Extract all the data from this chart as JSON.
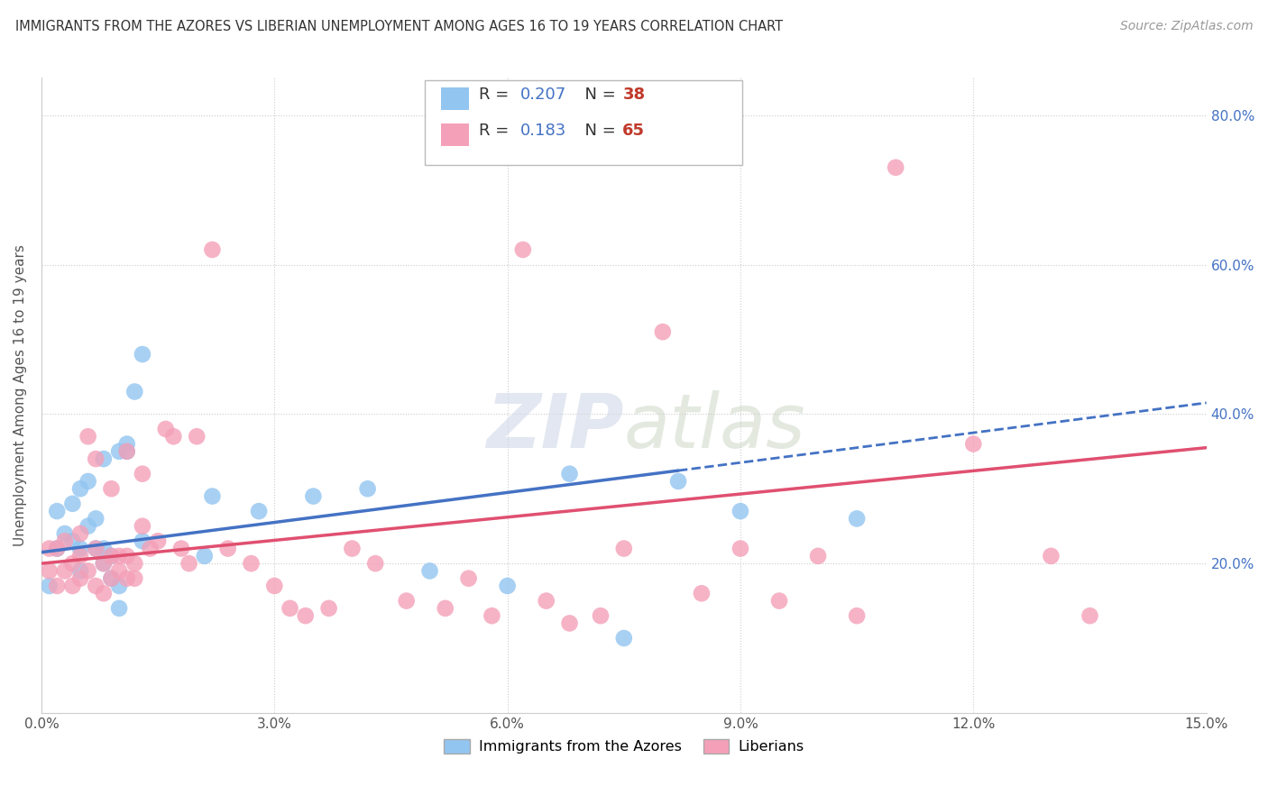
{
  "title": "IMMIGRANTS FROM THE AZORES VS LIBERIAN UNEMPLOYMENT AMONG AGES 16 TO 19 YEARS CORRELATION CHART",
  "source": "Source: ZipAtlas.com",
  "ylabel": "Unemployment Among Ages 16 to 19 years",
  "xlim": [
    0.0,
    0.15
  ],
  "ylim": [
    0.0,
    0.85
  ],
  "xticks": [
    0.0,
    0.03,
    0.06,
    0.09,
    0.12,
    0.15
  ],
  "yticks": [
    0.0,
    0.2,
    0.4,
    0.6,
    0.8
  ],
  "xtick_labels": [
    "0.0%",
    "3.0%",
    "6.0%",
    "9.0%",
    "12.0%",
    "15.0%"
  ],
  "right_ytick_labels": [
    "20.0%",
    "40.0%",
    "60.0%",
    "80.0%"
  ],
  "blue_R": "0.207",
  "blue_N": "38",
  "pink_R": "0.183",
  "pink_N": "65",
  "blue_color": "#92C5F0",
  "pink_color": "#F4A0B8",
  "blue_line_color": "#4472C4",
  "pink_line_color": "#E05070",
  "legend_label_blue": "Immigrants from the Azores",
  "legend_label_pink": "Liberians",
  "watermark_zip": "ZIP",
  "watermark_atlas": "atlas",
  "blue_scatter_x": [
    0.001,
    0.002,
    0.002,
    0.003,
    0.004,
    0.004,
    0.005,
    0.005,
    0.005,
    0.006,
    0.006,
    0.007,
    0.007,
    0.008,
    0.008,
    0.008,
    0.009,
    0.009,
    0.01,
    0.01,
    0.01,
    0.011,
    0.011,
    0.012,
    0.013,
    0.013,
    0.021,
    0.022,
    0.028,
    0.035,
    0.042,
    0.05,
    0.06,
    0.068,
    0.075,
    0.082,
    0.09,
    0.105
  ],
  "blue_scatter_y": [
    0.17,
    0.22,
    0.27,
    0.24,
    0.23,
    0.28,
    0.19,
    0.3,
    0.22,
    0.31,
    0.25,
    0.22,
    0.26,
    0.2,
    0.22,
    0.34,
    0.18,
    0.21,
    0.14,
    0.17,
    0.35,
    0.35,
    0.36,
    0.43,
    0.48,
    0.23,
    0.21,
    0.29,
    0.27,
    0.29,
    0.3,
    0.19,
    0.17,
    0.32,
    0.1,
    0.31,
    0.27,
    0.26
  ],
  "pink_scatter_x": [
    0.001,
    0.001,
    0.002,
    0.002,
    0.003,
    0.003,
    0.004,
    0.004,
    0.005,
    0.005,
    0.005,
    0.006,
    0.006,
    0.007,
    0.007,
    0.007,
    0.008,
    0.008,
    0.009,
    0.009,
    0.009,
    0.01,
    0.01,
    0.011,
    0.011,
    0.011,
    0.012,
    0.012,
    0.013,
    0.013,
    0.014,
    0.015,
    0.016,
    0.017,
    0.018,
    0.019,
    0.02,
    0.022,
    0.024,
    0.027,
    0.03,
    0.032,
    0.034,
    0.037,
    0.04,
    0.043,
    0.047,
    0.052,
    0.055,
    0.058,
    0.062,
    0.065,
    0.068,
    0.072,
    0.075,
    0.08,
    0.085,
    0.09,
    0.095,
    0.1,
    0.105,
    0.11,
    0.12,
    0.13,
    0.135
  ],
  "pink_scatter_y": [
    0.22,
    0.19,
    0.17,
    0.22,
    0.19,
    0.23,
    0.2,
    0.17,
    0.18,
    0.21,
    0.24,
    0.37,
    0.19,
    0.17,
    0.22,
    0.34,
    0.16,
    0.2,
    0.18,
    0.21,
    0.3,
    0.19,
    0.21,
    0.18,
    0.21,
    0.35,
    0.2,
    0.18,
    0.25,
    0.32,
    0.22,
    0.23,
    0.38,
    0.37,
    0.22,
    0.2,
    0.37,
    0.62,
    0.22,
    0.2,
    0.17,
    0.14,
    0.13,
    0.14,
    0.22,
    0.2,
    0.15,
    0.14,
    0.18,
    0.13,
    0.62,
    0.15,
    0.12,
    0.13,
    0.22,
    0.51,
    0.16,
    0.22,
    0.15,
    0.21,
    0.13,
    0.73,
    0.36,
    0.21,
    0.13
  ],
  "blue_line_x0": 0.0,
  "blue_line_y0": 0.215,
  "blue_line_solid_x1": 0.082,
  "blue_line_x1": 0.15,
  "blue_line_y1": 0.415,
  "pink_line_x0": 0.0,
  "pink_line_y0": 0.2,
  "pink_line_x1": 0.15,
  "pink_line_y1": 0.355
}
